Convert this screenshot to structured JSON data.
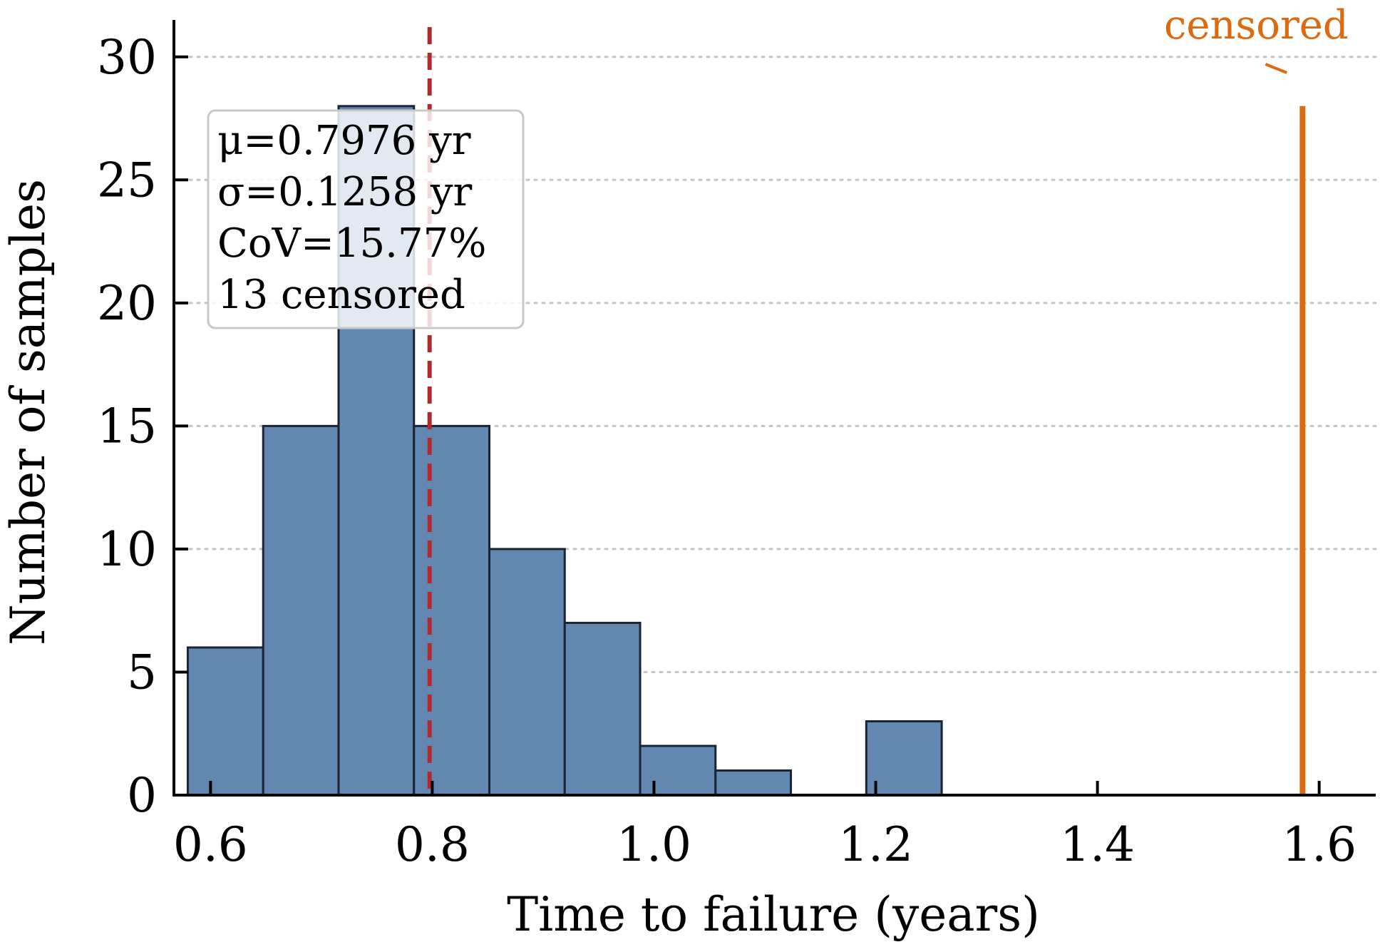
{
  "chart_data": {
    "type": "bar",
    "xlabel": "Time to failure (years)",
    "ylabel": "Number of samples",
    "xlim": [
      0.567,
      1.651
    ],
    "ylim": [
      0,
      31.5
    ],
    "xticks": [
      0.6,
      0.8,
      1.0,
      1.2,
      1.4,
      1.6
    ],
    "xtick_labels": [
      "0.6",
      "0.8",
      "1.0",
      "1.2",
      "1.4",
      "1.6"
    ],
    "yticks": [
      0,
      5,
      10,
      15,
      20,
      25,
      30
    ],
    "ytick_labels": [
      "0",
      "5",
      "10",
      "15",
      "20",
      "25",
      "30"
    ],
    "grid": "horizontal dotted",
    "bins": [
      {
        "x0": 0.5795,
        "x1": 0.6475,
        "count": 6
      },
      {
        "x0": 0.6475,
        "x1": 0.7155,
        "count": 15
      },
      {
        "x0": 0.7155,
        "x1": 0.7835,
        "count": 28
      },
      {
        "x0": 0.7835,
        "x1": 0.8515,
        "count": 15
      },
      {
        "x0": 0.8515,
        "x1": 0.9195,
        "count": 10
      },
      {
        "x0": 0.9195,
        "x1": 0.9875,
        "count": 7
      },
      {
        "x0": 0.9875,
        "x1": 1.0555,
        "count": 2
      },
      {
        "x0": 1.0555,
        "x1": 1.1235,
        "count": 1
      },
      {
        "x0": 1.1235,
        "x1": 1.1915,
        "count": 0
      },
      {
        "x0": 1.1915,
        "x1": 1.2595,
        "count": 3
      }
    ],
    "mean_line": {
      "x": 0.7976
    },
    "censored_line": {
      "x": 1.585,
      "y_top": 28.0,
      "label": "censored"
    },
    "stats_box": [
      "μ=0.7976 yr",
      "σ=0.1258 yr",
      "CoV=15.77%",
      "13 censored"
    ],
    "colors": {
      "bar_fill": "#6288b2",
      "bar_edge": "#1b2433",
      "mean_line": "#b5282e",
      "censored": "#dd6a10",
      "grid": "#c4c4c4",
      "axis": "#000000"
    }
  }
}
